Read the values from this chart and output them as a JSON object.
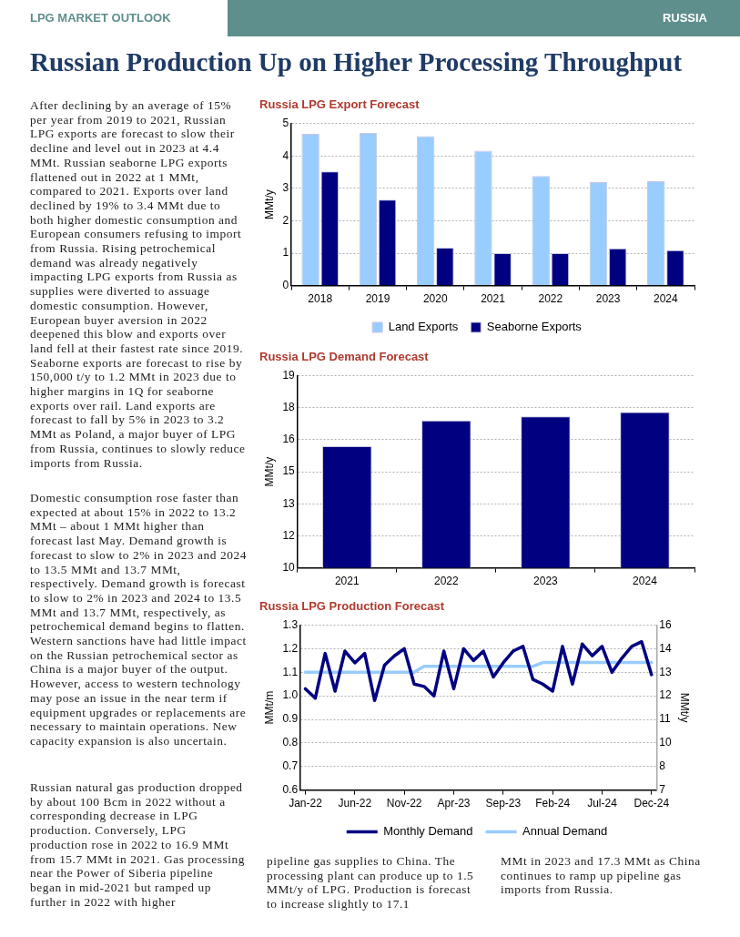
{
  "chart_data": [
    {
      "type": "other",
      "title": "Russian Production Up on Higher Processing Throughput",
      "annotations": [
        "LPG MARKET OUTLOOK",
        "RUSSIA",
        "After declining by an average of 15% per year from 2019 to 2021, Russian LPG exports are forecast to slow their decline and level out in 2023 at 4.4 MMt. Russian seaborne LPG exports flattened out in 2022 at 1 MMt, compared to 2021. Exports over land declined by 19% to 3.4 MMt due to both higher domestic consumption and European consumers refusing to import from Russia. Rising petrochemical demand was already negatively impacting LPG exports from Russia as supplies were diverted to assuage domestic consumption. However, European buyer aversion in 2022 deepened this blow and exports over land fell at their fastest rate since 2019. Seaborne exports are forecast to rise by 150,000 t/y to 1.2 MMt in 2023 due to higher margins in 1Q for seaborne exports over rail. Land exports are forecast to fall by 5% in 2023 to 3.2 MMt as Poland, a major buyer of LPG from Russia, continues to slowly reduce imports from Russia.",
        "Domestic consumption rose faster than expected at about 15% in 2022 to 13.2 MMt – about 1 MMt higher than forecast last May. Demand growth is forecast to slow to 2% in 2023 and 2024 to 13.5 MMt and 13.7 MMt, respectively. Demand growth is forecast to slow to 2% in 2023 and 2024 to 13.5 MMt and 13.7 MMt, respectively, as petrochemical demand begins to flatten. Western sanctions have had little impact on the Russian petrochemical sector as China is a major buyer of the output. However, access to western technology may pose an issue in the near term if equipment upgrades or replacements are necessary to maintain operations. New capacity expansion is also uncertain.",
        "Russian natural gas production dropped by about 100 Bcm in 2022 without a corresponding decrease in LPG production. Conversely, LPG production rose in 2022 to 16.9 MMt from 15.7 MMt in 2021. Gas processing near the Power of Siberia pipeline began in mid-2021 but ramped up further in 2022 with higher",
        "pipeline gas supplies to China. The processing plant can produce up to 1.5 MMt/y of LPG. Production is forecast to increase slightly to 17.1",
        "MMt in 2023 and 17.3 MMt as China continues to ramp up pipeline gas imports from Russia."
      ]
    },
    {
      "type": "bar",
      "title": "Russia LPG Export Forecast",
      "ylabel": "MMt/y",
      "categories": [
        "2018",
        "2019",
        "2020",
        "2021",
        "2022",
        "2023",
        "2024"
      ],
      "series": [
        {
          "name": "Land Exports",
          "color": "#99ccff",
          "values": [
            4.68,
            4.71,
            4.61,
            4.16,
            3.38,
            3.19,
            3.22
          ]
        },
        {
          "name": "Seaborne Exports",
          "color": "#000080",
          "values": [
            3.52,
            2.65,
            1.17,
            1.0,
            1.0,
            1.15,
            1.09
          ]
        }
      ],
      "ylim": [
        0,
        5
      ],
      "yticks": [
        0,
        1,
        2,
        3,
        4,
        5
      ],
      "grid": "y",
      "legend": "bottom"
    },
    {
      "type": "bar",
      "title": "Russia LPG Demand Forecast",
      "ylabel": "MMt/y",
      "categories": [
        "2021",
        "2022",
        "2023",
        "2024"
      ],
      "series": [
        {
          "color": "#000080",
          "values": [
            15.7,
            16.9,
            17.1,
            17.3
          ]
        }
      ],
      "ylim": [
        10,
        19
      ],
      "yticks": [
        10,
        {
          "value": 11.5,
          "label": "12"
        },
        13,
        {
          "value": 14.5,
          "label": "15"
        },
        16,
        {
          "value": 17.5,
          "label": "18"
        },
        19
      ],
      "grid": "y"
    },
    {
      "type": "line",
      "title": "Russia LPG Production Forecast",
      "ylabel": "MMt/m",
      "y2label": "MMt/y",
      "categories": [
        "Jan-22",
        null,
        null,
        null,
        null,
        "Jun-22",
        null,
        null,
        null,
        null,
        "Nov-22",
        null,
        null,
        null,
        null,
        "Apr-23",
        null,
        null,
        null,
        null,
        "Sep-23",
        null,
        null,
        null,
        null,
        "Feb-24",
        null,
        null,
        null,
        null,
        "Jul-24",
        null,
        null,
        null,
        null,
        "Dec-24"
      ],
      "series": [
        {
          "name": "Monthly Demand",
          "color": "#000080",
          "values": [
            1.03,
            0.99,
            1.18,
            1.02,
            1.19,
            1.14,
            1.18,
            0.98,
            1.13,
            1.17,
            1.2,
            1.05,
            1.04,
            1.0,
            1.19,
            1.03,
            1.2,
            1.15,
            1.19,
            1.08,
            1.14,
            1.19,
            1.21,
            1.07,
            1.05,
            1.02,
            1.21,
            1.05,
            1.22,
            1.17,
            1.21,
            1.1,
            1.16,
            1.21,
            1.23,
            1.09
          ]
        },
        {
          "name": "Annual Demand",
          "color": "#99ccff",
          "axis": "y2",
          "values": [
            13.2,
            13.2,
            13.2,
            13.2,
            13.2,
            13.2,
            13.2,
            13.2,
            13.2,
            13.2,
            13.2,
            13.2,
            13.5,
            13.5,
            13.5,
            13.5,
            13.5,
            13.5,
            13.5,
            13.5,
            13.5,
            13.5,
            13.5,
            13.5,
            13.7,
            13.7,
            13.7,
            13.7,
            13.7,
            13.7,
            13.7,
            13.7,
            13.7,
            13.7,
            13.7,
            13.7
          ]
        }
      ],
      "ylim": [
        0.6,
        1.3
      ],
      "yticks": [
        {
          "value": 0.6,
          "label": "0.6"
        },
        {
          "value": 0.7,
          "label": "0.7"
        },
        {
          "value": 0.8,
          "label": "0.8"
        },
        {
          "value": 0.9,
          "label": "0.9"
        },
        {
          "value": 1.0,
          "label": "1.0"
        },
        {
          "value": 1.1,
          "label": "1.1"
        },
        {
          "value": 1.2,
          "label": "1.2"
        },
        {
          "value": 1.3,
          "label": "1.3"
        }
      ],
      "y2lim": [
        7.2,
        15.6
      ],
      "y2ticks": [
        {
          "value": 7.2,
          "label": "7"
        },
        {
          "value": 8.4,
          "label": "8"
        },
        {
          "value": 9.6,
          "label": "10"
        },
        {
          "value": 10.8,
          "label": "11"
        },
        12,
        {
          "value": 13.2,
          "label": "13"
        },
        {
          "value": 14.4,
          "label": "14"
        },
        {
          "value": 15.6,
          "label": "16"
        }
      ],
      "grid": "y",
      "legend": "bottom",
      "marker": "none",
      "line_style": "solid"
    }
  ]
}
